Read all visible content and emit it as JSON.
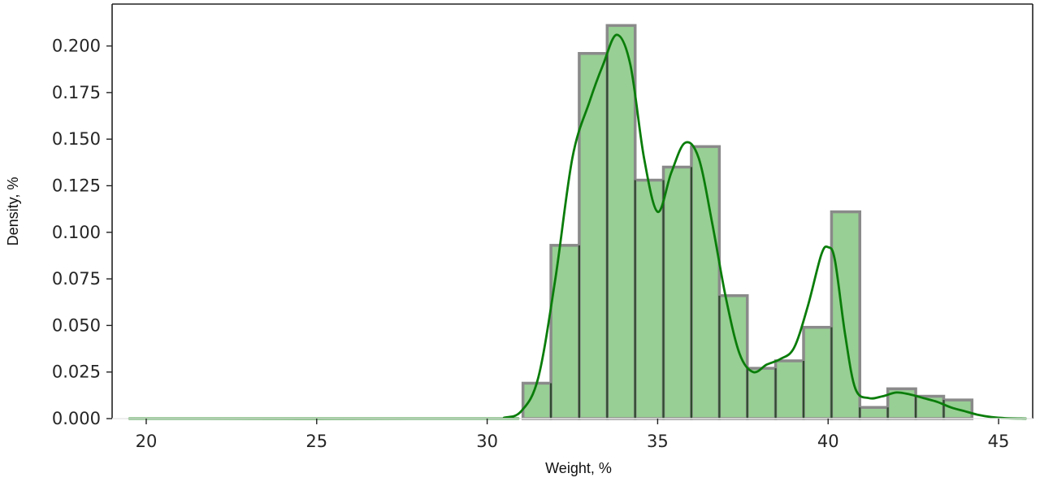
{
  "chart_data": {
    "type": "histogram",
    "xlabel": "Weight, %",
    "ylabel": "Density, %",
    "xlim": [
      19.0,
      46.0
    ],
    "ylim": [
      0,
      0.2225
    ],
    "x_ticks": [
      {
        "value": 20,
        "label": "20"
      },
      {
        "value": 25,
        "label": "25"
      },
      {
        "value": 30,
        "label": "30"
      },
      {
        "value": 35,
        "label": "35"
      },
      {
        "value": 40,
        "label": "40"
      },
      {
        "value": 45,
        "label": "45"
      }
    ],
    "y_ticks": [
      {
        "value": 0.0,
        "label": "0.000"
      },
      {
        "value": 0.025,
        "label": "0.025"
      },
      {
        "value": 0.05,
        "label": "0.050"
      },
      {
        "value": 0.075,
        "label": "0.075"
      },
      {
        "value": 0.1,
        "label": "0.100"
      },
      {
        "value": 0.125,
        "label": "0.125"
      },
      {
        "value": 0.15,
        "label": "0.150"
      },
      {
        "value": 0.175,
        "label": "0.175"
      },
      {
        "value": 0.2,
        "label": "0.200"
      }
    ],
    "bin_edges": [
      31.05,
      31.87,
      32.7,
      33.52,
      34.34,
      35.17,
      35.99,
      36.81,
      37.63,
      38.46,
      39.28,
      40.1,
      40.93,
      41.75,
      42.57,
      43.39,
      44.22
    ],
    "bar_values": [
      0.019,
      0.093,
      0.196,
      0.211,
      0.128,
      0.135,
      0.146,
      0.066,
      0.027,
      0.031,
      0.049,
      0.111,
      0.006,
      0.016,
      0.012,
      0.01
    ],
    "kde": {
      "x": [
        19.5,
        30.0,
        30.5,
        31.0,
        31.5,
        32.0,
        32.5,
        33.0,
        33.4,
        33.8,
        34.2,
        34.6,
        35.0,
        35.4,
        35.8,
        36.2,
        36.6,
        37.0,
        37.4,
        37.8,
        38.2,
        38.6,
        39.0,
        39.4,
        39.8,
        40.0,
        40.2,
        40.5,
        40.8,
        41.2,
        41.6,
        42.0,
        42.4,
        42.8,
        43.2,
        43.6,
        44.0,
        44.4,
        44.8,
        45.2,
        45.8
      ],
      "y": [
        0.0,
        0.0,
        0.0005,
        0.004,
        0.022,
        0.075,
        0.14,
        0.17,
        0.19,
        0.206,
        0.19,
        0.14,
        0.111,
        0.132,
        0.148,
        0.14,
        0.105,
        0.065,
        0.035,
        0.025,
        0.029,
        0.032,
        0.038,
        0.06,
        0.088,
        0.092,
        0.085,
        0.045,
        0.016,
        0.011,
        0.012,
        0.014,
        0.013,
        0.011,
        0.009,
        0.006,
        0.004,
        0.002,
        0.0008,
        0.0002,
        0.0
      ]
    },
    "colors": {
      "bar_fill": "#98cf94",
      "bar_edge": "#8a8a8a",
      "bar_inner_edge": "#2f4a2f",
      "kde_line": "#0a7d0a",
      "axis": "#222222"
    },
    "grid": false,
    "legend": "none"
  }
}
